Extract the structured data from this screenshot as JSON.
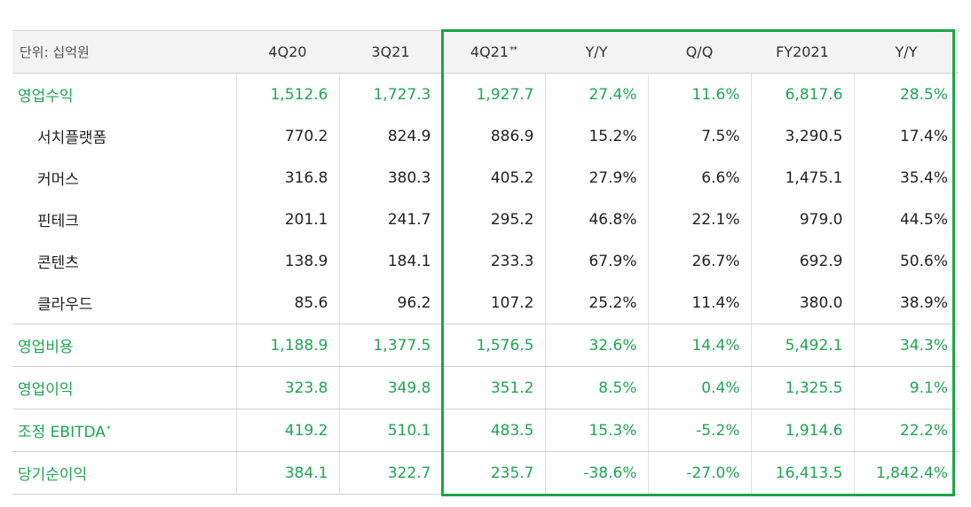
{
  "table": {
    "headers": [
      "단위: 십억원",
      "4Q20",
      "3Q21",
      "4Q21",
      "Y/Y",
      "Q/Q",
      "FY2021",
      "Y/Y"
    ],
    "header_marks": {
      "4Q21": "**"
    },
    "rows": [
      {
        "label": "영업수익",
        "values": [
          "1,512.6",
          "1,727.3",
          "1,927.7",
          "27.4%",
          "11.6%",
          "6,817.6",
          "28.5%"
        ]
      },
      {
        "label": "서치플랫폼",
        "values": [
          "770.2",
          "824.9",
          "886.9",
          "15.2%",
          "7.5%",
          "3,290.5",
          "17.4%"
        ]
      },
      {
        "label": "커머스",
        "values": [
          "316.8",
          "380.3",
          "405.2",
          "27.9%",
          "6.6%",
          "1,475.1",
          "35.4%"
        ]
      },
      {
        "label": "핀테크",
        "values": [
          "201.1",
          "241.7",
          "295.2",
          "46.8%",
          "22.1%",
          "979.0",
          "44.5%"
        ]
      },
      {
        "label": "콘텐츠",
        "values": [
          "138.9",
          "184.1",
          "233.3",
          "67.9%",
          "26.7%",
          "692.9",
          "50.6%"
        ]
      },
      {
        "label": "클라우드",
        "values": [
          "85.6",
          "96.2",
          "107.2",
          "25.2%",
          "11.4%",
          "380.0",
          "38.9%"
        ]
      },
      {
        "label": "영업비용",
        "values": [
          "1,188.9",
          "1,377.5",
          "1,576.5",
          "32.6%",
          "14.4%",
          "5,492.1",
          "34.3%"
        ]
      },
      {
        "label": "영업이익",
        "values": [
          "323.8",
          "349.8",
          "351.2",
          "8.5%",
          "0.4%",
          "1,325.5",
          "9.1%"
        ]
      },
      {
        "label": "조정 EBITDA",
        "label_mark": "*",
        "values": [
          "419.2",
          "510.1",
          "483.5",
          "15.3%",
          "-5.2%",
          "1,914.6",
          "22.2%"
        ]
      },
      {
        "label": "당기순이익",
        "values": [
          "384.1",
          "322.7",
          "235.7",
          "-38.6%",
          "-27.0%",
          "16,413.5",
          "1,842.4%"
        ]
      }
    ]
  },
  "colors": {
    "accent_green": "#1ea552",
    "highlight_border": "#1aa54b",
    "header_bg": "#f3f3f3"
  }
}
